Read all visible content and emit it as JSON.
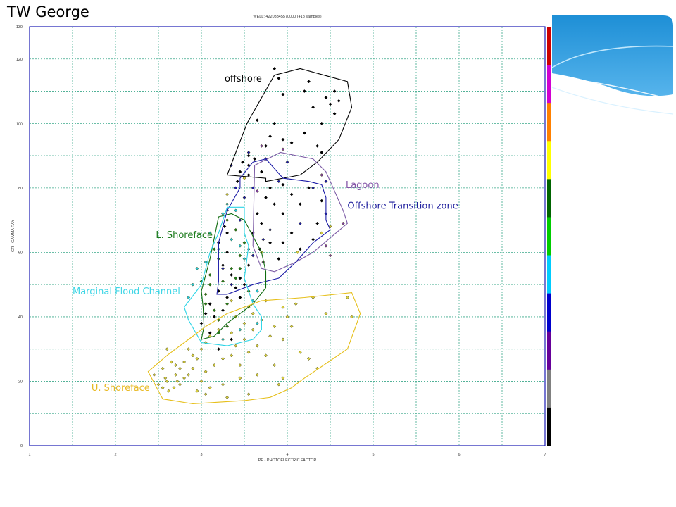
{
  "slide": {
    "title": "TW George"
  },
  "chart_data": {
    "type": "scatter",
    "title": "WELL: 42203345570000  (418 samples)",
    "xlabel": "PE - PHOTOELECTRIC FACTOR",
    "ylabel": "GR - GAMMA RAY",
    "xlim": [
      1,
      7
    ],
    "ylim": [
      0,
      130
    ],
    "x_ticks": [
      1,
      2,
      3,
      4,
      5,
      6,
      7
    ],
    "y_ticks": [
      0,
      20,
      40,
      60,
      80,
      100,
      120,
      130
    ],
    "grid": true,
    "colorbar": [
      "#cc0000",
      "#d100d1",
      "#ff8000",
      "#ffff00",
      "#006400",
      "#00cc00",
      "#00ccff",
      "#0000cc",
      "#660099",
      "#808080",
      "#000000"
    ],
    "zones": [
      {
        "name": "offshore",
        "color": "#000000",
        "label_color": "#000000",
        "label_at": [
          3.27,
          113
        ],
        "polygon": [
          [
            3.3,
            84
          ],
          [
            3.53,
            100
          ],
          [
            3.85,
            115
          ],
          [
            4.15,
            117
          ],
          [
            4.7,
            113
          ],
          [
            4.75,
            105
          ],
          [
            4.6,
            95
          ],
          [
            4.35,
            88
          ],
          [
            4.15,
            84
          ],
          [
            3.75,
            82
          ],
          [
            3.75,
            83
          ],
          [
            3.3,
            84
          ]
        ]
      },
      {
        "name": "Lagoon",
        "color": "#7d5ca6",
        "label_color": "#8455a8",
        "label_at": [
          4.68,
          80
        ],
        "polygon": [
          [
            3.62,
            87
          ],
          [
            3.92,
            91
          ],
          [
            4.3,
            89
          ],
          [
            4.45,
            85
          ],
          [
            4.55,
            79
          ],
          [
            4.65,
            73
          ],
          [
            4.7,
            69
          ],
          [
            4.3,
            60
          ],
          [
            4.1,
            57
          ],
          [
            3.85,
            54
          ],
          [
            3.7,
            55
          ],
          [
            3.6,
            62
          ],
          [
            3.62,
            87
          ]
        ]
      },
      {
        "name": "Offshore Transition zone",
        "color": "#1a1aa6",
        "label_color": "#1f1f9e",
        "label_at": [
          4.7,
          73.5
        ],
        "polygon": [
          [
            3.45,
            83
          ],
          [
            3.6,
            88
          ],
          [
            3.75,
            89
          ],
          [
            3.95,
            83
          ],
          [
            4.25,
            82
          ],
          [
            4.4,
            81
          ],
          [
            4.45,
            77
          ],
          [
            4.45,
            70
          ],
          [
            4.5,
            67
          ],
          [
            4.3,
            63
          ],
          [
            4.1,
            57
          ],
          [
            3.9,
            52
          ],
          [
            3.6,
            50
          ],
          [
            3.3,
            47
          ],
          [
            3.18,
            47
          ],
          [
            3.2,
            51
          ],
          [
            3.2,
            63
          ],
          [
            3.3,
            73
          ],
          [
            3.45,
            80
          ],
          [
            3.45,
            83
          ]
        ]
      },
      {
        "name": "L. Shoreface",
        "color": "#0e6b0e",
        "label_color": "#1a7a1a",
        "label_at": [
          2.47,
          64.5
        ],
        "polygon": [
          [
            3.2,
            71
          ],
          [
            3.35,
            72
          ],
          [
            3.5,
            70
          ],
          [
            3.6,
            65
          ],
          [
            3.7,
            60
          ],
          [
            3.75,
            54
          ],
          [
            3.75,
            49
          ],
          [
            3.6,
            44
          ],
          [
            3.3,
            38
          ],
          [
            3.15,
            34
          ],
          [
            3.0,
            33
          ],
          [
            3.03,
            37
          ],
          [
            3.02,
            43
          ],
          [
            3.0,
            48
          ],
          [
            3.1,
            58
          ],
          [
            3.2,
            71
          ]
        ]
      },
      {
        "name": "Marginal Flood Channel",
        "color": "#2ad4e6",
        "label_color": "#3fd6e6",
        "label_at": [
          1.5,
          47
        ],
        "polygon": [
          [
            3.3,
            74
          ],
          [
            3.5,
            74
          ],
          [
            3.5,
            66
          ],
          [
            3.55,
            62
          ],
          [
            3.5,
            52
          ],
          [
            3.6,
            44
          ],
          [
            3.7,
            40
          ],
          [
            3.7,
            36
          ],
          [
            3.6,
            33
          ],
          [
            3.3,
            31
          ],
          [
            3.0,
            32
          ],
          [
            2.85,
            39
          ],
          [
            2.8,
            43
          ],
          [
            3.0,
            50
          ],
          [
            3.1,
            60
          ],
          [
            3.2,
            66
          ],
          [
            3.3,
            74
          ]
        ]
      },
      {
        "name": "U. Shoreface",
        "color": "#e6bf1a",
        "label_color": "#e8b923",
        "label_at": [
          1.72,
          17
        ],
        "polygon": [
          [
            2.38,
            23
          ],
          [
            2.6,
            28
          ],
          [
            2.85,
            33
          ],
          [
            3.05,
            37
          ],
          [
            3.3,
            41
          ],
          [
            3.7,
            45
          ],
          [
            4.2,
            46
          ],
          [
            4.75,
            47.5
          ],
          [
            4.85,
            41
          ],
          [
            4.7,
            30
          ],
          [
            4.2,
            21
          ],
          [
            4.05,
            18
          ],
          [
            3.8,
            15
          ],
          [
            3.5,
            14
          ],
          [
            3.2,
            13.5
          ],
          [
            2.9,
            13
          ],
          [
            2.55,
            14.5
          ],
          [
            2.38,
            23
          ]
        ]
      }
    ],
    "points": {
      "black": [
        [
          3.85,
          117
        ],
        [
          3.9,
          114
        ],
        [
          4.25,
          113
        ],
        [
          4.55,
          110
        ],
        [
          4.45,
          108
        ],
        [
          4.6,
          107
        ],
        [
          4.5,
          106
        ],
        [
          4.3,
          105
        ],
        [
          4.2,
          110
        ],
        [
          4.55,
          103
        ],
        [
          4.4,
          100
        ],
        [
          3.95,
          109
        ],
        [
          3.65,
          101
        ],
        [
          3.85,
          100
        ],
        [
          3.8,
          96
        ],
        [
          3.95,
          95
        ],
        [
          4.05,
          94
        ],
        [
          4.2,
          97
        ],
        [
          4.35,
          93
        ],
        [
          4.4,
          91
        ],
        [
          3.75,
          93
        ],
        [
          3.55,
          90
        ],
        [
          3.48,
          88
        ],
        [
          3.62,
          89
        ],
        [
          3.55,
          87
        ],
        [
          3.45,
          85
        ],
        [
          3.42,
          82
        ],
        [
          3.55,
          84
        ],
        [
          3.7,
          85
        ],
        [
          3.8,
          80
        ],
        [
          3.95,
          81
        ],
        [
          4.05,
          78
        ],
        [
          4.15,
          75
        ],
        [
          4.25,
          80
        ],
        [
          4.4,
          76
        ],
        [
          4.35,
          69
        ],
        [
          4.5,
          68
        ],
        [
          4.3,
          64
        ],
        [
          4.15,
          61
        ],
        [
          4.05,
          66
        ],
        [
          3.95,
          72
        ],
        [
          3.85,
          75
        ],
        [
          3.75,
          77
        ],
        [
          3.65,
          72
        ],
        [
          3.7,
          69
        ],
        [
          3.6,
          66
        ],
        [
          3.8,
          63
        ],
        [
          3.9,
          58
        ],
        [
          3.95,
          63
        ],
        [
          3.68,
          61
        ],
        [
          3.55,
          56
        ],
        [
          3.25,
          56
        ],
        [
          3.3,
          60
        ],
        [
          3.2,
          63
        ],
        [
          3.3,
          66
        ],
        [
          3.27,
          68
        ],
        [
          3.35,
          53
        ],
        [
          3.2,
          48
        ],
        [
          3.1,
          44
        ],
        [
          3.05,
          41
        ],
        [
          3.15,
          40
        ],
        [
          3.25,
          42
        ],
        [
          3.3,
          46
        ],
        [
          3.4,
          49
        ],
        [
          3.5,
          50
        ],
        [
          3.45,
          46
        ],
        [
          3.45,
          52
        ],
        [
          3.1,
          35
        ],
        [
          3.0,
          38
        ],
        [
          3.35,
          33
        ],
        [
          3.2,
          30
        ]
      ],
      "blue": [
        [
          3.35,
          87
        ],
        [
          3.55,
          91
        ],
        [
          3.75,
          89
        ],
        [
          4.0,
          88
        ],
        [
          3.9,
          82
        ],
        [
          4.45,
          82
        ],
        [
          4.3,
          80
        ],
        [
          3.6,
          80
        ],
        [
          3.5,
          77
        ],
        [
          3.4,
          80
        ],
        [
          3.3,
          73
        ],
        [
          3.45,
          70
        ],
        [
          4.45,
          72
        ],
        [
          4.15,
          69
        ],
        [
          3.72,
          64
        ],
        [
          3.55,
          61
        ],
        [
          3.35,
          50
        ],
        [
          3.25,
          55
        ],
        [
          3.6,
          59
        ],
        [
          3.8,
          67
        ]
      ],
      "purple": [
        [
          4.4,
          84
        ],
        [
          3.95,
          92
        ],
        [
          3.7,
          93
        ],
        [
          3.65,
          79
        ],
        [
          4.65,
          69
        ],
        [
          4.45,
          62
        ],
        [
          3.72,
          57
        ],
        [
          4.5,
          59
        ]
      ],
      "green": [
        [
          3.3,
          70
        ],
        [
          3.4,
          67
        ],
        [
          3.5,
          63
        ],
        [
          3.15,
          61
        ],
        [
          3.2,
          58
        ],
        [
          3.45,
          59
        ],
        [
          3.35,
          55
        ],
        [
          3.25,
          51
        ],
        [
          3.1,
          50
        ],
        [
          3.05,
          47
        ],
        [
          3.1,
          53
        ],
        [
          3.4,
          52
        ],
        [
          3.45,
          55
        ],
        [
          3.55,
          48
        ],
        [
          3.05,
          44
        ],
        [
          3.15,
          42
        ],
        [
          3.2,
          39
        ],
        [
          3.3,
          44
        ],
        [
          3.2,
          35
        ],
        [
          3.3,
          37
        ],
        [
          3.0,
          51
        ]
      ],
      "cyan": [
        [
          3.3,
          75
        ],
        [
          3.4,
          73
        ],
        [
          3.25,
          72
        ],
        [
          3.1,
          66
        ],
        [
          3.2,
          61
        ],
        [
          3.05,
          57
        ],
        [
          2.95,
          55
        ],
        [
          2.9,
          50
        ],
        [
          2.85,
          46
        ],
        [
          3.35,
          64
        ],
        [
          3.5,
          58
        ],
        [
          3.6,
          45
        ],
        [
          3.65,
          38
        ],
        [
          3.45,
          36
        ],
        [
          3.25,
          33
        ],
        [
          3.65,
          48
        ],
        [
          3.45,
          62
        ]
      ],
      "yellow": [
        [
          3.3,
          78
        ],
        [
          3.5,
          83
        ],
        [
          3.7,
          60
        ],
        [
          4.12,
          60
        ],
        [
          4.4,
          66
        ],
        [
          4.5,
          68
        ],
        [
          3.35,
          45
        ],
        [
          3.55,
          43
        ],
        [
          3.75,
          45
        ],
        [
          3.95,
          43
        ],
        [
          4.1,
          44
        ],
        [
          4.3,
          46
        ],
        [
          4.7,
          46
        ],
        [
          4.75,
          40
        ],
        [
          4.45,
          41
        ],
        [
          4.05,
          37
        ],
        [
          3.95,
          33
        ],
        [
          3.85,
          37
        ],
        [
          3.7,
          39
        ],
        [
          3.6,
          41
        ],
        [
          3.5,
          38
        ],
        [
          3.4,
          40
        ],
        [
          3.35,
          35
        ],
        [
          3.2,
          36
        ],
        [
          3.1,
          34
        ],
        [
          3.05,
          32
        ],
        [
          3.0,
          30
        ],
        [
          2.9,
          28
        ],
        [
          2.85,
          30
        ],
        [
          2.8,
          26
        ],
        [
          2.75,
          24
        ],
        [
          2.7,
          22
        ],
        [
          2.6,
          20
        ],
        [
          2.55,
          24
        ],
        [
          2.65,
          26
        ],
        [
          2.58,
          21
        ],
        [
          2.5,
          19
        ],
        [
          2.45,
          22
        ],
        [
          2.68,
          18
        ],
        [
          2.72,
          20
        ],
        [
          2.62,
          17
        ],
        [
          2.55,
          18
        ],
        [
          2.75,
          19
        ],
        [
          2.8,
          21
        ],
        [
          2.85,
          22
        ],
        [
          2.9,
          24
        ],
        [
          2.95,
          27
        ],
        [
          2.95,
          17
        ],
        [
          3.0,
          20
        ],
        [
          3.05,
          23
        ],
        [
          3.15,
          25
        ],
        [
          3.25,
          27
        ],
        [
          3.35,
          28
        ],
        [
          3.45,
          25
        ],
        [
          3.55,
          29
        ],
        [
          3.65,
          31
        ],
        [
          3.75,
          28
        ],
        [
          3.85,
          25
        ],
        [
          3.95,
          21
        ],
        [
          4.15,
          29
        ],
        [
          4.25,
          27
        ],
        [
          4.35,
          24
        ],
        [
          3.65,
          22
        ],
        [
          3.45,
          21
        ],
        [
          3.25,
          19
        ],
        [
          3.1,
          18
        ],
        [
          3.05,
          16
        ],
        [
          3.3,
          15
        ],
        [
          3.55,
          16
        ],
        [
          3.9,
          19
        ],
        [
          2.6,
          30
        ],
        [
          2.7,
          25
        ],
        [
          3.5,
          33
        ],
        [
          3.8,
          34
        ],
        [
          3.6,
          36
        ],
        [
          4.0,
          40
        ],
        [
          3.4,
          31
        ]
      ]
    },
    "point_colors": {
      "black": "#000000",
      "blue": "#1a1aa6",
      "purple": "#7d3fa0",
      "green": "#1d7d1d",
      "cyan": "#26c6d9",
      "yellow": "#d6cc40"
    }
  }
}
